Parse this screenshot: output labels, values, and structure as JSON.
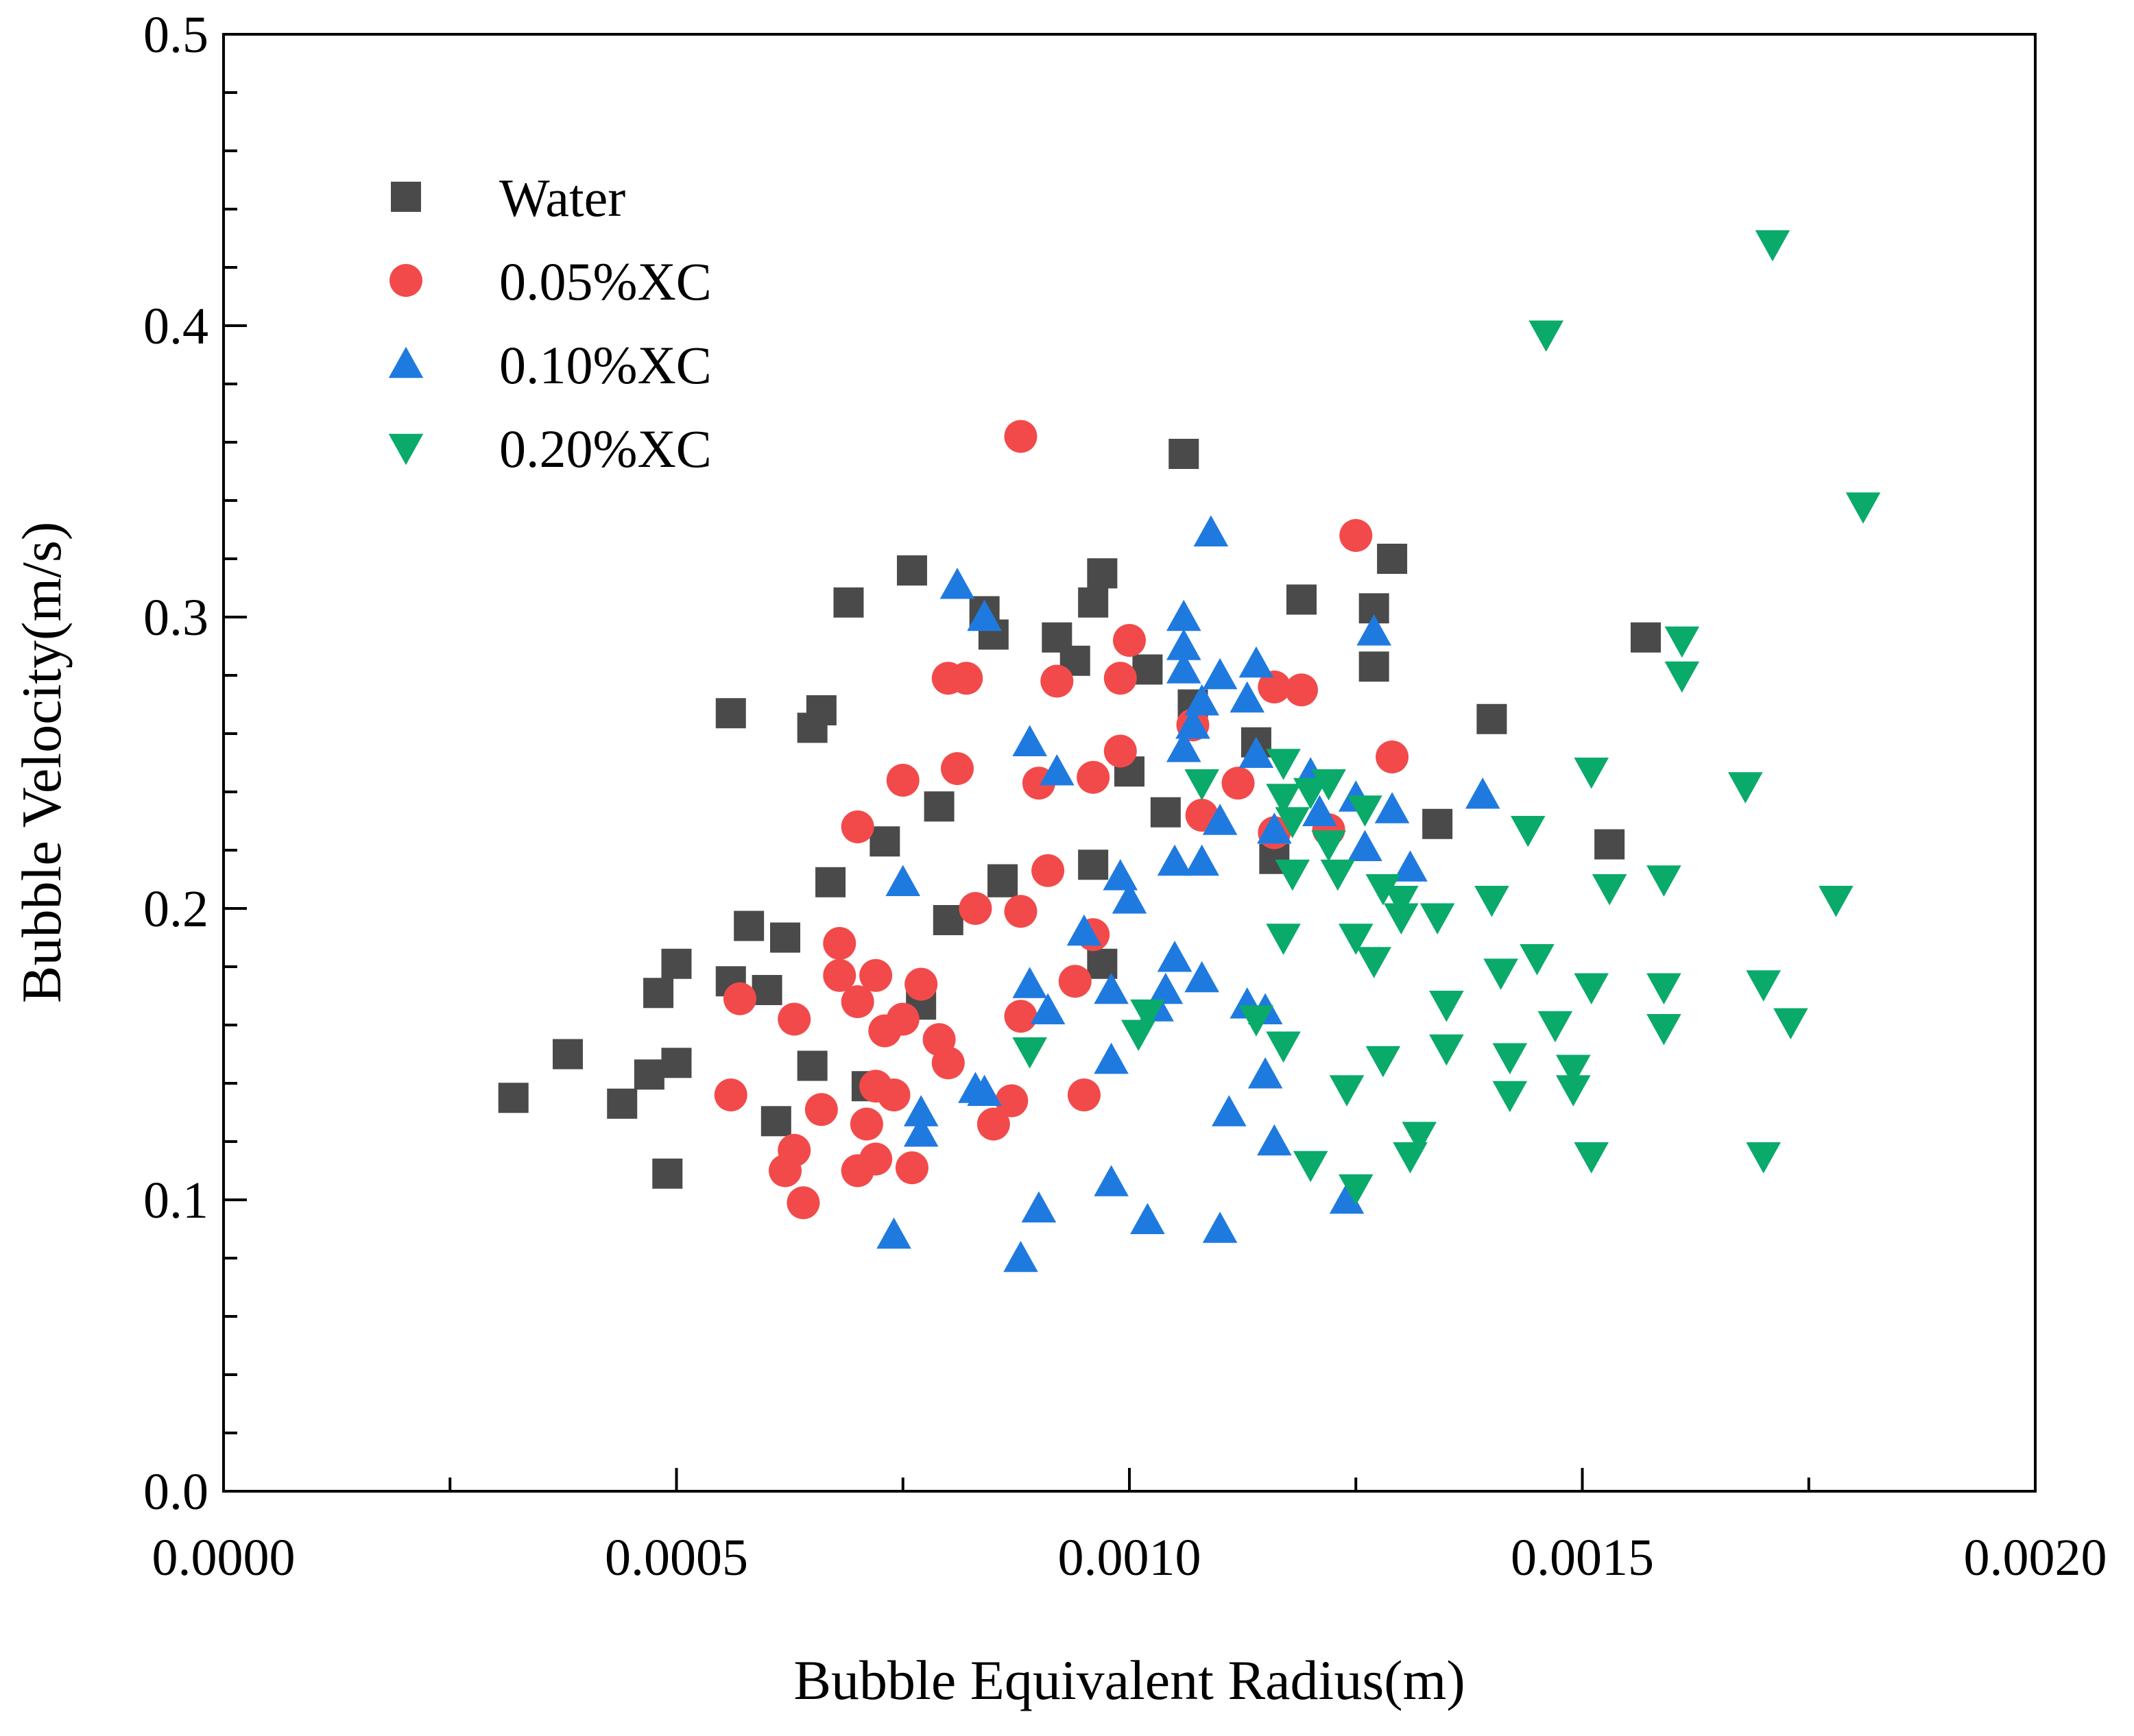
{
  "chart_data": {
    "type": "scatter",
    "xlabel": "Bubble Equivalent Radius(m)",
    "ylabel": "Bubble Velocity(m/s)",
    "xlim": [
      0.0,
      0.002
    ],
    "ylim": [
      0.0,
      0.5
    ],
    "x_ticks": [
      "0.0000",
      "0.0005",
      "0.0010",
      "0.0015",
      "0.0020"
    ],
    "y_ticks": [
      "0.0",
      "0.1",
      "0.2",
      "0.3",
      "0.4",
      "0.5"
    ],
    "legend_position": "top-left",
    "series": [
      {
        "name": "Water",
        "marker": "square",
        "color": "#4a4a4a",
        "points": [
          [
            0.00032,
            0.135
          ],
          [
            0.00038,
            0.15
          ],
          [
            0.00044,
            0.133
          ],
          [
            0.00048,
            0.171
          ],
          [
            0.00047,
            0.143
          ],
          [
            0.00049,
            0.109
          ],
          [
            0.0005,
            0.147
          ],
          [
            0.0005,
            0.181
          ],
          [
            0.00056,
            0.175
          ],
          [
            0.00056,
            0.267
          ],
          [
            0.00058,
            0.194
          ],
          [
            0.0006,
            0.172
          ],
          [
            0.00061,
            0.127
          ],
          [
            0.00062,
            0.19
          ],
          [
            0.00065,
            0.146
          ],
          [
            0.00065,
            0.262
          ],
          [
            0.00066,
            0.268
          ],
          [
            0.00067,
            0.209
          ],
          [
            0.00069,
            0.305
          ],
          [
            0.00071,
            0.139
          ],
          [
            0.00073,
            0.223
          ],
          [
            0.00076,
            0.316
          ],
          [
            0.00077,
            0.167
          ],
          [
            0.00079,
            0.235
          ],
          [
            0.0008,
            0.196
          ],
          [
            0.00084,
            0.302
          ],
          [
            0.00085,
            0.294
          ],
          [
            0.00086,
            0.21
          ],
          [
            0.00086,
            0.209
          ],
          [
            0.00092,
            0.293
          ],
          [
            0.00094,
            0.285
          ],
          [
            0.00096,
            0.215
          ],
          [
            0.00096,
            0.305
          ],
          [
            0.00097,
            0.315
          ],
          [
            0.00097,
            0.181
          ],
          [
            0.001,
            0.247
          ],
          [
            0.00102,
            0.282
          ],
          [
            0.00104,
            0.233
          ],
          [
            0.00106,
            0.356
          ],
          [
            0.00107,
            0.27
          ],
          [
            0.00114,
            0.257
          ],
          [
            0.00116,
            0.217
          ],
          [
            0.00119,
            0.306
          ],
          [
            0.00127,
            0.303
          ],
          [
            0.00127,
            0.283
          ],
          [
            0.00129,
            0.32
          ],
          [
            0.00134,
            0.229
          ],
          [
            0.0014,
            0.265
          ],
          [
            0.00153,
            0.222
          ],
          [
            0.00157,
            0.293
          ]
        ]
      },
      {
        "name": "0.05%XC",
        "marker": "circle",
        "color": "#f24a4a",
        "points": [
          [
            0.00056,
            0.136
          ],
          [
            0.00057,
            0.169
          ],
          [
            0.00062,
            0.11
          ],
          [
            0.00063,
            0.117
          ],
          [
            0.00063,
            0.162
          ],
          [
            0.00064,
            0.099
          ],
          [
            0.00066,
            0.131
          ],
          [
            0.00068,
            0.177
          ],
          [
            0.00068,
            0.188
          ],
          [
            0.0007,
            0.11
          ],
          [
            0.0007,
            0.168
          ],
          [
            0.0007,
            0.228
          ],
          [
            0.00071,
            0.126
          ],
          [
            0.00072,
            0.114
          ],
          [
            0.00072,
            0.139
          ],
          [
            0.00072,
            0.177
          ],
          [
            0.00073,
            0.158
          ],
          [
            0.00074,
            0.136
          ],
          [
            0.00075,
            0.162
          ],
          [
            0.00075,
            0.244
          ],
          [
            0.00076,
            0.111
          ],
          [
            0.00077,
            0.174
          ],
          [
            0.00079,
            0.155
          ],
          [
            0.0008,
            0.147
          ],
          [
            0.0008,
            0.279
          ],
          [
            0.00081,
            0.248
          ],
          [
            0.00082,
            0.279
          ],
          [
            0.00083,
            0.2
          ],
          [
            0.00085,
            0.126
          ],
          [
            0.00087,
            0.134
          ],
          [
            0.00088,
            0.163
          ],
          [
            0.00088,
            0.199
          ],
          [
            0.00088,
            0.362
          ],
          [
            0.0009,
            0.243
          ],
          [
            0.00091,
            0.213
          ],
          [
            0.00092,
            0.278
          ],
          [
            0.00094,
            0.175
          ],
          [
            0.00095,
            0.136
          ],
          [
            0.00096,
            0.191
          ],
          [
            0.00096,
            0.245
          ],
          [
            0.00099,
            0.279
          ],
          [
            0.00099,
            0.254
          ],
          [
            0.001,
            0.292
          ],
          [
            0.00107,
            0.263
          ],
          [
            0.00108,
            0.232
          ],
          [
            0.00112,
            0.243
          ],
          [
            0.00116,
            0.276
          ],
          [
            0.00116,
            0.226
          ],
          [
            0.00119,
            0.275
          ],
          [
            0.00122,
            0.227
          ],
          [
            0.00125,
            0.328
          ],
          [
            0.00129,
            0.252
          ]
        ]
      },
      {
        "name": "0.10%XC",
        "marker": "triangle-up",
        "color": "#1f7ae0",
        "points": [
          [
            0.00074,
            0.088
          ],
          [
            0.00075,
            0.209
          ],
          [
            0.00077,
            0.13
          ],
          [
            0.00077,
            0.123
          ],
          [
            0.00081,
            0.311
          ],
          [
            0.00083,
            0.138
          ],
          [
            0.00084,
            0.137
          ],
          [
            0.00084,
            0.3
          ],
          [
            0.00088,
            0.08
          ],
          [
            0.00089,
            0.257
          ],
          [
            0.00089,
            0.174
          ],
          [
            0.0009,
            0.097
          ],
          [
            0.00091,
            0.165
          ],
          [
            0.00092,
            0.247
          ],
          [
            0.00095,
            0.192
          ],
          [
            0.00098,
            0.172
          ],
          [
            0.00098,
            0.106
          ],
          [
            0.00098,
            0.148
          ],
          [
            0.00099,
            0.211
          ],
          [
            0.001,
            0.203
          ],
          [
            0.00102,
            0.093
          ],
          [
            0.00103,
            0.166
          ],
          [
            0.00104,
            0.172
          ],
          [
            0.00105,
            0.216
          ],
          [
            0.00105,
            0.183
          ],
          [
            0.00106,
            0.3
          ],
          [
            0.00106,
            0.29
          ],
          [
            0.00106,
            0.282
          ],
          [
            0.00106,
            0.255
          ],
          [
            0.00107,
            0.263
          ],
          [
            0.00108,
            0.176
          ],
          [
            0.00108,
            0.271
          ],
          [
            0.00108,
            0.216
          ],
          [
            0.00109,
            0.329
          ],
          [
            0.0011,
            0.23
          ],
          [
            0.0011,
            0.28
          ],
          [
            0.0011,
            0.09
          ],
          [
            0.00111,
            0.13
          ],
          [
            0.00113,
            0.272
          ],
          [
            0.00113,
            0.167
          ],
          [
            0.00114,
            0.284
          ],
          [
            0.00114,
            0.253
          ],
          [
            0.00115,
            0.143
          ],
          [
            0.00115,
            0.165
          ],
          [
            0.00116,
            0.227
          ],
          [
            0.00116,
            0.12
          ],
          [
            0.0012,
            0.246
          ],
          [
            0.00121,
            0.233
          ],
          [
            0.00124,
            0.1
          ],
          [
            0.00125,
            0.238
          ],
          [
            0.00126,
            0.221
          ],
          [
            0.00127,
            0.295
          ],
          [
            0.00129,
            0.234
          ],
          [
            0.00131,
            0.214
          ],
          [
            0.00139,
            0.239
          ]
        ]
      },
      {
        "name": "0.20%XC",
        "marker": "triangle-down",
        "color": "#0aaa6a",
        "points": [
          [
            0.00089,
            0.151
          ],
          [
            0.00102,
            0.164
          ],
          [
            0.00101,
            0.157
          ],
          [
            0.00108,
            0.243
          ],
          [
            0.00114,
            0.162
          ],
          [
            0.00117,
            0.25
          ],
          [
            0.00117,
            0.238
          ],
          [
            0.00117,
            0.19
          ],
          [
            0.00117,
            0.153
          ],
          [
            0.00118,
            0.212
          ],
          [
            0.00118,
            0.23
          ],
          [
            0.0012,
            0.24
          ],
          [
            0.0012,
            0.112
          ],
          [
            0.00122,
            0.243
          ],
          [
            0.00122,
            0.222
          ],
          [
            0.00123,
            0.212
          ],
          [
            0.00124,
            0.138
          ],
          [
            0.00125,
            0.19
          ],
          [
            0.00125,
            0.104
          ],
          [
            0.00126,
            0.234
          ],
          [
            0.00127,
            0.182
          ],
          [
            0.00128,
            0.207
          ],
          [
            0.00128,
            0.148
          ],
          [
            0.0013,
            0.203
          ],
          [
            0.0013,
            0.197
          ],
          [
            0.00131,
            0.115
          ],
          [
            0.00132,
            0.122
          ],
          [
            0.00134,
            0.197
          ],
          [
            0.00135,
            0.167
          ],
          [
            0.00135,
            0.152
          ],
          [
            0.0014,
            0.203
          ],
          [
            0.00141,
            0.178
          ],
          [
            0.00142,
            0.149
          ],
          [
            0.00142,
            0.136
          ],
          [
            0.00144,
            0.227
          ],
          [
            0.00145,
            0.183
          ],
          [
            0.00146,
            0.397
          ],
          [
            0.00147,
            0.16
          ],
          [
            0.00149,
            0.145
          ],
          [
            0.00149,
            0.138
          ],
          [
            0.00151,
            0.173
          ],
          [
            0.00151,
            0.247
          ],
          [
            0.00151,
            0.115
          ],
          [
            0.00153,
            0.207
          ],
          [
            0.00159,
            0.21
          ],
          [
            0.00159,
            0.173
          ],
          [
            0.00159,
            0.159
          ],
          [
            0.00161,
            0.292
          ],
          [
            0.00161,
            0.28
          ],
          [
            0.00168,
            0.242
          ],
          [
            0.0017,
            0.174
          ],
          [
            0.0017,
            0.115
          ],
          [
            0.00171,
            0.428
          ],
          [
            0.00173,
            0.161
          ],
          [
            0.00178,
            0.203
          ],
          [
            0.00181,
            0.338
          ]
        ]
      }
    ]
  }
}
